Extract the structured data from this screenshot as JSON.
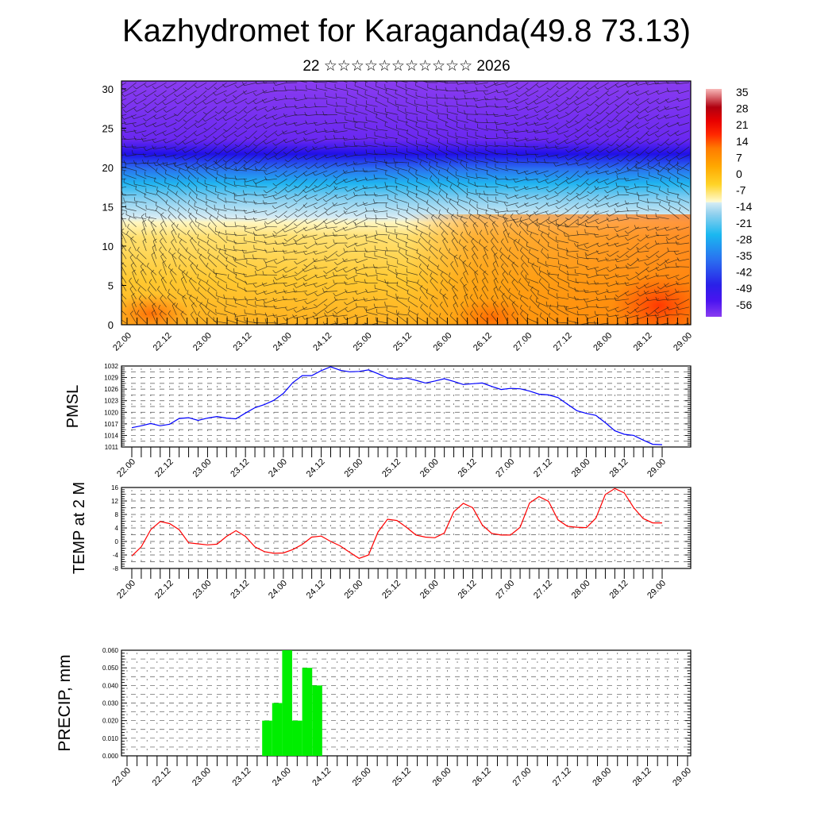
{
  "header": {
    "title": "Kazhydromet for Karaganda(49.8 73.13)",
    "subtitle": "22 ☆☆☆☆☆☆☆☆☆☆☆ 2026"
  },
  "time_labels": [
    "22.00",
    "22.12",
    "23.00",
    "23.12",
    "24.00",
    "24.12",
    "25.00",
    "25.12",
    "26.00",
    "26.12",
    "27.00",
    "27.12",
    "28.00",
    "28.12",
    "29.00"
  ],
  "chart_data": [
    {
      "type": "heatmap",
      "title": "Vertical cross-section (temperature shading with wind barbs)",
      "x_tick_labels": [
        "22.00",
        "22.12",
        "23.00",
        "23.12",
        "24.00",
        "24.12",
        "25.00",
        "25.12",
        "26.00",
        "26.12",
        "27.00",
        "27.12",
        "28.00",
        "28.12",
        "29.00"
      ],
      "y_tick_labels": [
        "0",
        "5",
        "10",
        "15",
        "20",
        "25",
        "30"
      ],
      "ylim": [
        0,
        31
      ],
      "colorbar": {
        "labels": [
          "35",
          "28",
          "21",
          "14",
          "7",
          "0",
          "-7",
          "-14",
          "-21",
          "-28",
          "-35",
          "-42",
          "-49",
          "-56"
        ],
        "range": [
          -63,
          42
        ],
        "colors": [
          "#7a2ff0",
          "#3a10f0",
          "#2a5cf0",
          "#1ab8f0",
          "#a8dcf0",
          "#fff8b8",
          "#ffd428",
          "#ffa800",
          "#ff7a00",
          "#ff3000",
          "#e00000",
          "#b00000",
          "#f0a0a0"
        ]
      },
      "bands": [
        {
          "level_lo": 0,
          "level_hi": 13,
          "value": 0
        },
        {
          "level_lo": 13,
          "level_hi": 16,
          "value": -14
        },
        {
          "level_lo": 16,
          "level_hi": 20,
          "value": -28
        },
        {
          "level_lo": 20,
          "level_hi": 23,
          "value": -49
        },
        {
          "level_lo": 23,
          "level_hi": 31,
          "value": -56
        }
      ]
    },
    {
      "type": "line",
      "ylabel": "PMSL",
      "ylim": [
        1011,
        1032
      ],
      "y_tick_labels": [
        "1011",
        "1014",
        "1017",
        "1020",
        "1023",
        "1026",
        "1029",
        "1032"
      ],
      "x_tick_labels": [
        "22.00",
        "22.12",
        "23.00",
        "23.12",
        "24.00",
        "24.12",
        "25.00",
        "25.12",
        "26.00",
        "26.12",
        "27.00",
        "27.12",
        "28.00",
        "28.12",
        "29.00"
      ],
      "step_hours": 3,
      "color": "#0000ff",
      "values": [
        1016.0,
        1016.5,
        1017.1,
        1016.5,
        1016.9,
        1018.4,
        1018.6,
        1017.9,
        1018.5,
        1018.9,
        1018.5,
        1018.3,
        1019.8,
        1021.2,
        1022.0,
        1023.1,
        1024.9,
        1027.7,
        1029.5,
        1029.5,
        1030.8,
        1031.8,
        1030.9,
        1030.5,
        1030.6,
        1031.0,
        1030.0,
        1028.9,
        1028.6,
        1028.9,
        1028.3,
        1027.6,
        1028.1,
        1028.7,
        1028.0,
        1027.2,
        1027.4,
        1027.6,
        1026.7,
        1025.9,
        1026.2,
        1026.1,
        1025.5,
        1024.7,
        1024.5,
        1023.8,
        1022.1,
        1020.4,
        1019.7,
        1019.2,
        1017.3,
        1015.2,
        1014.3,
        1014.0,
        1012.8,
        1011.7,
        1011.6
      ]
    },
    {
      "type": "line",
      "ylabel": "TEMP at 2 M",
      "ylim": [
        -8,
        16
      ],
      "y_tick_labels": [
        "-8",
        "-4",
        "0",
        "4",
        "8",
        "12",
        "16"
      ],
      "x_tick_labels": [
        "22.00",
        "22.12",
        "23.00",
        "23.12",
        "24.00",
        "24.12",
        "25.00",
        "25.12",
        "26.00",
        "26.12",
        "27.00",
        "27.12",
        "28.00",
        "28.12",
        "29.00"
      ],
      "step_hours": 3,
      "color": "#ff0000",
      "values": [
        -4.3,
        -1.6,
        3.5,
        5.9,
        5.3,
        3.5,
        -0.4,
        -0.7,
        -1.0,
        -0.8,
        1.5,
        3.2,
        1.5,
        -1.6,
        -3.0,
        -3.5,
        -3.4,
        -2.4,
        -0.9,
        1.3,
        1.6,
        0.0,
        -1.3,
        -3.2,
        -5.0,
        -4.0,
        2.8,
        6.6,
        6.2,
        4.2,
        1.9,
        1.3,
        1.1,
        2.5,
        8.8,
        11.3,
        10.0,
        4.9,
        2.4,
        1.9,
        1.9,
        4.2,
        11.4,
        13.3,
        11.9,
        6.4,
        4.5,
        4.2,
        4.1,
        6.9,
        13.9,
        15.7,
        14.4,
        10.0,
        6.8,
        5.5,
        5.5
      ]
    },
    {
      "type": "bar",
      "ylabel": "PRECIP, mm",
      "ylim": [
        0,
        0.06
      ],
      "y_tick_labels": [
        "0.000",
        "0.010",
        "0.020",
        "0.030",
        "0.040",
        "0.050",
        "0.060"
      ],
      "x_tick_labels": [
        "22.00",
        "22.12",
        "23.00",
        "23.12",
        "24.00",
        "24.12",
        "25.00",
        "25.12",
        "26.00",
        "26.12",
        "27.00",
        "27.12",
        "28.00",
        "28.12",
        "29.00"
      ],
      "step_hours": 3,
      "color": "#00ee00",
      "bars": [
        {
          "index": 14,
          "value": 0.02
        },
        {
          "index": 15,
          "value": 0.03
        },
        {
          "index": 16,
          "value": 0.06
        },
        {
          "index": 17,
          "value": 0.02
        },
        {
          "index": 18,
          "value": 0.05
        },
        {
          "index": 19,
          "value": 0.04
        }
      ]
    }
  ]
}
